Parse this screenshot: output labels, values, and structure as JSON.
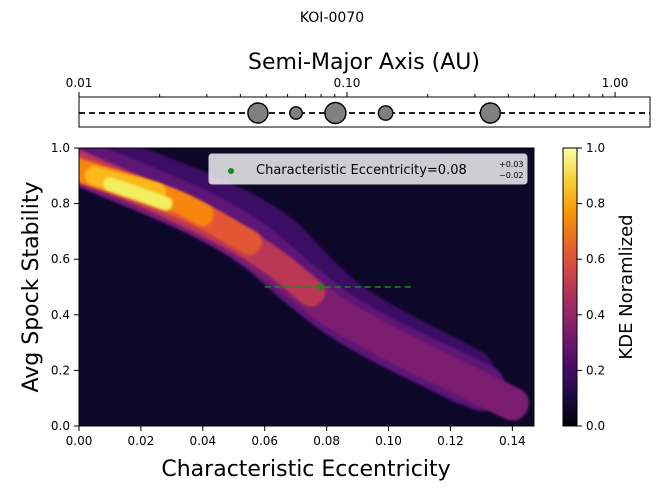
{
  "figure": {
    "title": "KOI-0070"
  },
  "chart_data": [
    {
      "type": "scatter",
      "panel": "orbit-strip",
      "xlabel": "Semi-Major Axis (AU)",
      "xscale": "log",
      "xlim": [
        0.01,
        1.35
      ],
      "xticks": [
        "0.01",
        "0.10",
        "1.00"
      ],
      "xtick_values": [
        0.01,
        0.1,
        1.0
      ],
      "points": [
        {
          "a": 0.0465,
          "relative_size": 1.0
        },
        {
          "a": 0.0645,
          "relative_size": 0.62
        },
        {
          "a": 0.0905,
          "relative_size": 1.05
        },
        {
          "a": 0.1393,
          "relative_size": 0.72
        },
        {
          "a": 0.3425,
          "relative_size": 1.0
        }
      ],
      "marker_color": "#808080",
      "line_style": "dashed"
    },
    {
      "type": "heatmap",
      "panel": "kde",
      "xlabel": "Characteristic Eccentricity",
      "ylabel": "Avg Spock Stability",
      "xlim": [
        0.0,
        0.147
      ],
      "ylim": [
        0.0,
        1.0
      ],
      "xticks": [
        "0.00",
        "0.02",
        "0.04",
        "0.06",
        "0.08",
        "0.10",
        "0.12",
        "0.14"
      ],
      "xtick_values": [
        0.0,
        0.02,
        0.04,
        0.06,
        0.08,
        0.1,
        0.12,
        0.14
      ],
      "yticks": [
        "0.0",
        "0.2",
        "0.4",
        "0.6",
        "0.8",
        "1.0"
      ],
      "ytick_values": [
        0.0,
        0.2,
        0.4,
        0.6,
        0.8,
        1.0
      ],
      "levels": [
        {
          "level": 0.2,
          "color": "#3a0963",
          "ridge": [
            [
              0.0,
              0.98
            ],
            [
              0.06,
              0.72
            ],
            [
              0.075,
              0.52
            ],
            [
              0.09,
              0.38
            ],
            [
              0.125,
              0.18
            ]
          ],
          "halfwidth": 0.105
        },
        {
          "level": 0.3,
          "color": "#5b1276",
          "ridge": [
            [
              0.0,
              0.95
            ],
            [
              0.05,
              0.72
            ],
            [
              0.072,
              0.5
            ],
            [
              0.09,
              0.35
            ],
            [
              0.13,
              0.14
            ]
          ],
          "halfwidth": 0.085
        },
        {
          "level": 0.4,
          "color": "#7c1d6f",
          "ridge": [
            [
              0.0,
              0.93
            ],
            [
              0.045,
              0.72
            ],
            [
              0.07,
              0.52
            ],
            [
              0.085,
              0.38
            ],
            [
              0.14,
              0.08
            ]
          ],
          "halfwidth": 0.06
        },
        {
          "level": 0.5,
          "color": "#bb3754",
          "ridge": [
            [
              0.0,
              0.94
            ],
            [
              0.035,
              0.77
            ],
            [
              0.06,
              0.62
            ],
            [
              0.075,
              0.48
            ]
          ],
          "halfwidth": 0.05
        },
        {
          "level": 0.6,
          "color": "#e25734",
          "ridge": [
            [
              0.0,
              0.92
            ],
            [
              0.035,
              0.79
            ],
            [
              0.055,
              0.66
            ]
          ],
          "halfwidth": 0.045
        },
        {
          "level": 0.7,
          "color": "#f8850f",
          "ridge": [
            [
              0.0,
              0.92
            ],
            [
              0.03,
              0.82
            ],
            [
              0.04,
              0.76
            ]
          ],
          "halfwidth": 0.04
        },
        {
          "level": 0.8,
          "color": "#fbb81d",
          "ridge": [
            [
              0.005,
              0.9
            ],
            [
              0.025,
              0.84
            ]
          ],
          "halfwidth": 0.035
        },
        {
          "level": 0.9,
          "color": "#f3ee5f",
          "ridge": [
            [
              0.01,
              0.87
            ],
            [
              0.028,
              0.8
            ]
          ],
          "halfwidth": 0.025
        }
      ],
      "background_color": "#0d0829",
      "marker": {
        "x": 0.078,
        "y": 0.5,
        "xerr_low": 0.018,
        "xerr_high": 0.03,
        "color": "#1a8a1a"
      },
      "legend": {
        "position": "top-right",
        "label_prefix": "Characteristic Eccentricity=",
        "value": "0.08",
        "err_plus": "+0.03",
        "err_minus": "−0.02"
      },
      "colorbar": {
        "label": "KDE Noramlized",
        "ticks": [
          "0.0",
          "0.2",
          "0.4",
          "0.6",
          "0.8",
          "1.0"
        ],
        "tick_values": [
          0.0,
          0.2,
          0.4,
          0.6,
          0.8,
          1.0
        ],
        "colors": [
          "#000004",
          "#1b0c41",
          "#4a0c6b",
          "#781c6d",
          "#a52c60",
          "#cf4446",
          "#ed6925",
          "#fb9b06",
          "#f7d13d",
          "#fcffa4"
        ]
      }
    }
  ]
}
